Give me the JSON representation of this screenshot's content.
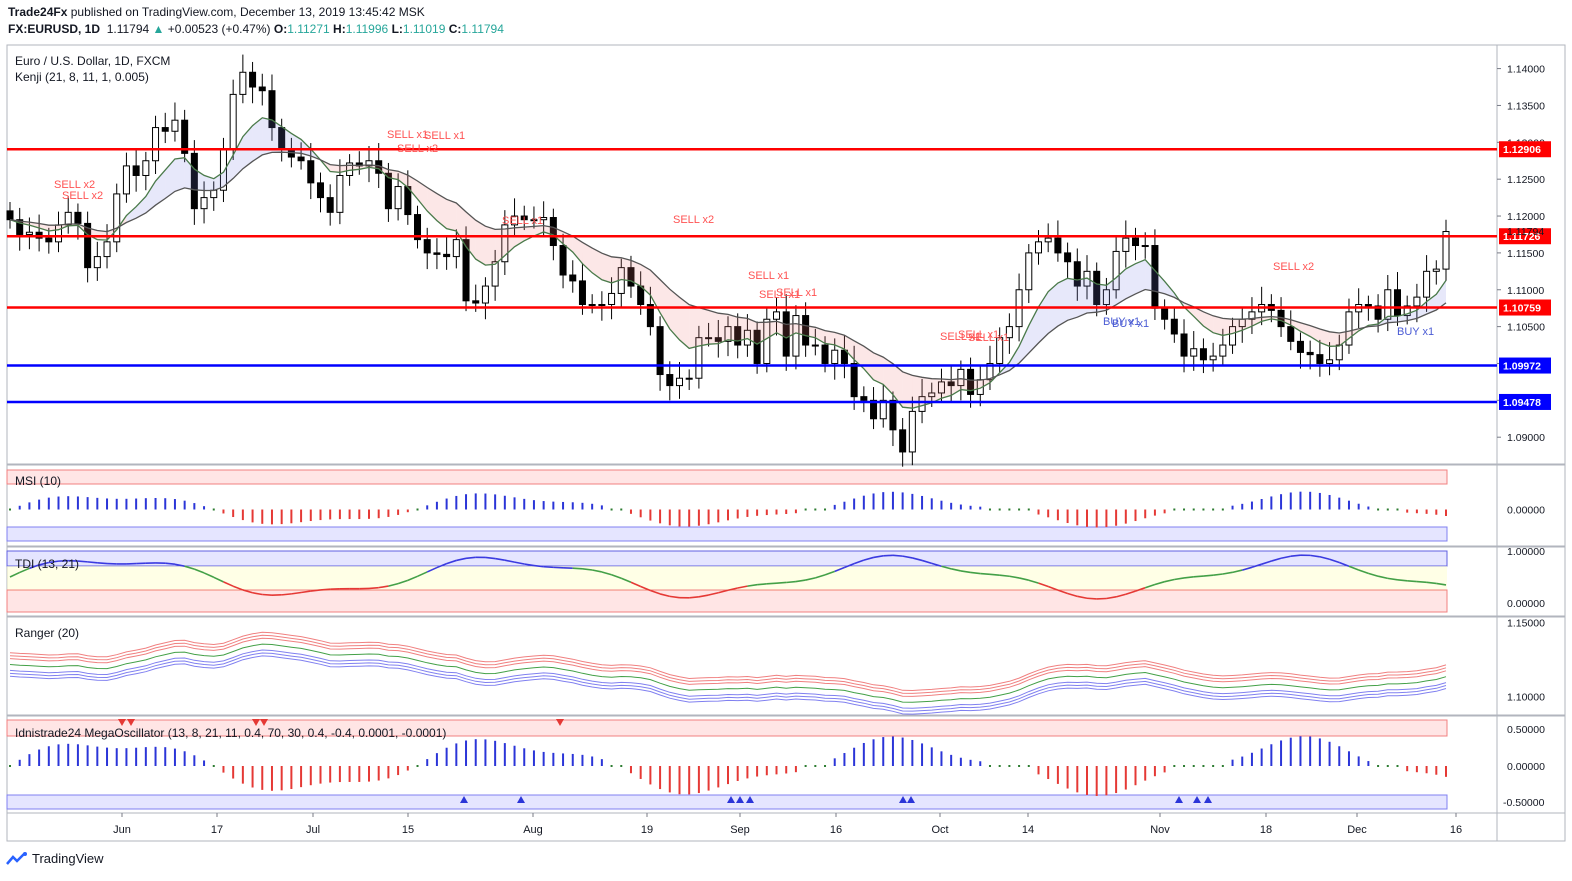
{
  "header": {
    "publisher": "Trade24Fx",
    "published_text": "published on TradingView.com, December 13, 2019 13:45:42 MSK",
    "symbol": "FX:EURUSD, 1D",
    "last": "1.11794",
    "change_arrow": "▲",
    "change": "+0.00523 (+0.47%)",
    "o_label": "O:",
    "o": "1.11271",
    "h_label": "H:",
    "h": "1.11996",
    "l_label": "L:",
    "l": "1.11019",
    "c_label": "C:",
    "c": "1.11794"
  },
  "footer": {
    "brand": "TradingView",
    "logo_icon": "tradingview-logo-icon"
  },
  "colors": {
    "up_candle": "#ffffff",
    "down_candle": "#000000",
    "resistance": "#ff0000",
    "support": "#0000ff",
    "sell_text": "#ff5252",
    "buy_text": "#4a5bd4"
  },
  "chart_data": {
    "type": "candlestick",
    "title": "Euro / U.S. Dollar, 1D, FXCM",
    "indicator_label": "Kenji (21, 8, 11, 1, 0.005)",
    "x_tick_labels": [
      "Jun",
      "17",
      "Jul",
      "15",
      "Aug",
      "19",
      "Sep",
      "16",
      "Oct",
      "14",
      "Nov",
      "18",
      "Dec",
      "16"
    ],
    "price_axis": {
      "range": [
        1.0865,
        1.1432
      ],
      "ticks": [
        "1.14000",
        "1.13500",
        "1.13000",
        "1.12500",
        "1.12000",
        "1.11500",
        "1.11000",
        "1.10500",
        "1.10000",
        "1.09500",
        "1.09000",
        "1.08500"
      ]
    },
    "horizontal_levels": [
      {
        "value": "1.12906",
        "color": "#ff0000"
      },
      {
        "value": "1.11726",
        "color": "#ff0000"
      },
      {
        "value": "1.10759",
        "color": "#ff0000"
      },
      {
        "value": "1.09972",
        "color": "#0000ff"
      },
      {
        "value": "1.09478",
        "color": "#0000ff"
      }
    ],
    "last_price_label": "1.11794",
    "close_path": [
      [
        1.1195,
        1.1175,
        1.1178,
        1.117,
        1.1165,
        1.1188,
        1.1205,
        1.119,
        1.113,
        1.1145,
        1.1165,
        1.123,
        1.1268,
        1.1255,
        1.1275,
        1.132,
        1.1315,
        1.133,
        1.1285,
        1.121,
        1.1225,
        1.1235,
        1.129,
        1.1365,
        1.1395,
        1.1375,
        1.137,
        1.132,
        1.129,
        1.128,
        1.1275,
        1.1245,
        1.1225,
        1.1205,
        1.1255,
        1.1272,
        1.1268,
        1.1275,
        1.1258,
        1.121,
        1.124,
        1.1202,
        1.1168,
        1.115,
        1.1148,
        1.1145,
        1.1168,
        1.1085,
        1.1082,
        1.1105,
        1.1138,
        1.1188,
        1.12,
        1.1195,
        1.1195,
        1.1198,
        1.116,
        1.112,
        1.1112,
        1.108,
        1.108,
        1.108,
        1.1095,
        1.113,
        1.1105,
        1.108,
        1.105,
        1.0985,
        1.097,
        1.098,
        1.098,
        1.1035,
        1.1035,
        1.103,
        1.105,
        1.1025,
        1.1045,
        1.1,
        1.106,
        1.107,
        1.101,
        1.1065,
        1.1025,
        1.1025,
        1.1,
        1.1018,
        1.1,
        1.0955,
        1.095,
        1.0925,
        1.095,
        1.091,
        1.088,
        1.0935,
        1.0955,
        1.096,
        1.0975,
        1.097,
        1.0992,
        1.0958,
        1.0978,
        1.1,
        1.1035,
        1.105,
        1.11,
        1.115,
        1.1165,
        1.117,
        1.115,
        1.1138,
        1.1105,
        1.1125,
        1.108,
        1.11,
        1.1152,
        1.117,
        1.116,
        1.116,
        1.1075,
        1.106,
        1.104,
        1.101,
        1.102,
        1.1005,
        1.101,
        1.1025,
        1.105,
        1.106,
        1.107,
        1.108,
        1.1072,
        1.105,
        1.103,
        1.1015,
        1.1012,
        1.1,
        1.1005,
        1.1025,
        1.107,
        1.108,
        1.1078,
        1.106,
        1.11,
        1.1065,
        1.1078,
        1.109,
        1.1125,
        1.1128,
        1.1179
      ]
    ],
    "signals": [
      {
        "label": "SELL x2"
      },
      {
        "label": "SELL x2"
      },
      {
        "label": "SELL x1"
      },
      {
        "label": "SELL x2"
      },
      {
        "label": "SELL x1"
      },
      {
        "label": "SELL x1"
      },
      {
        "label": "SELL x2"
      },
      {
        "label": "SELL x1"
      },
      {
        "label": "SELL x1"
      },
      {
        "label": "SELL x1"
      },
      {
        "label": "SELL x1"
      },
      {
        "label": "SELL x1"
      },
      {
        "label": "SELL x1"
      },
      {
        "label": "SELL x2"
      },
      {
        "label": "BUY x1"
      },
      {
        "label": "BUY x1"
      },
      {
        "label": "BUY x1"
      }
    ],
    "panes": [
      {
        "label": "MSI (10)",
        "ticks": [
          "0.00000"
        ]
      },
      {
        "label": "TDI (13, 21)",
        "ticks": [
          "1.00000",
          "0.00000"
        ]
      },
      {
        "label": "Ranger (20)",
        "ticks": [
          "1.15000",
          "1.10000"
        ]
      },
      {
        "label": "Idnistrade24 MegaOscillator (13, 8, 21, 11, 0.4, 70, 30, 0.4, -0.4, 0.0001, -0.0001)",
        "ticks": [
          "0.50000",
          "0.00000",
          "-0.50000"
        ]
      }
    ]
  }
}
